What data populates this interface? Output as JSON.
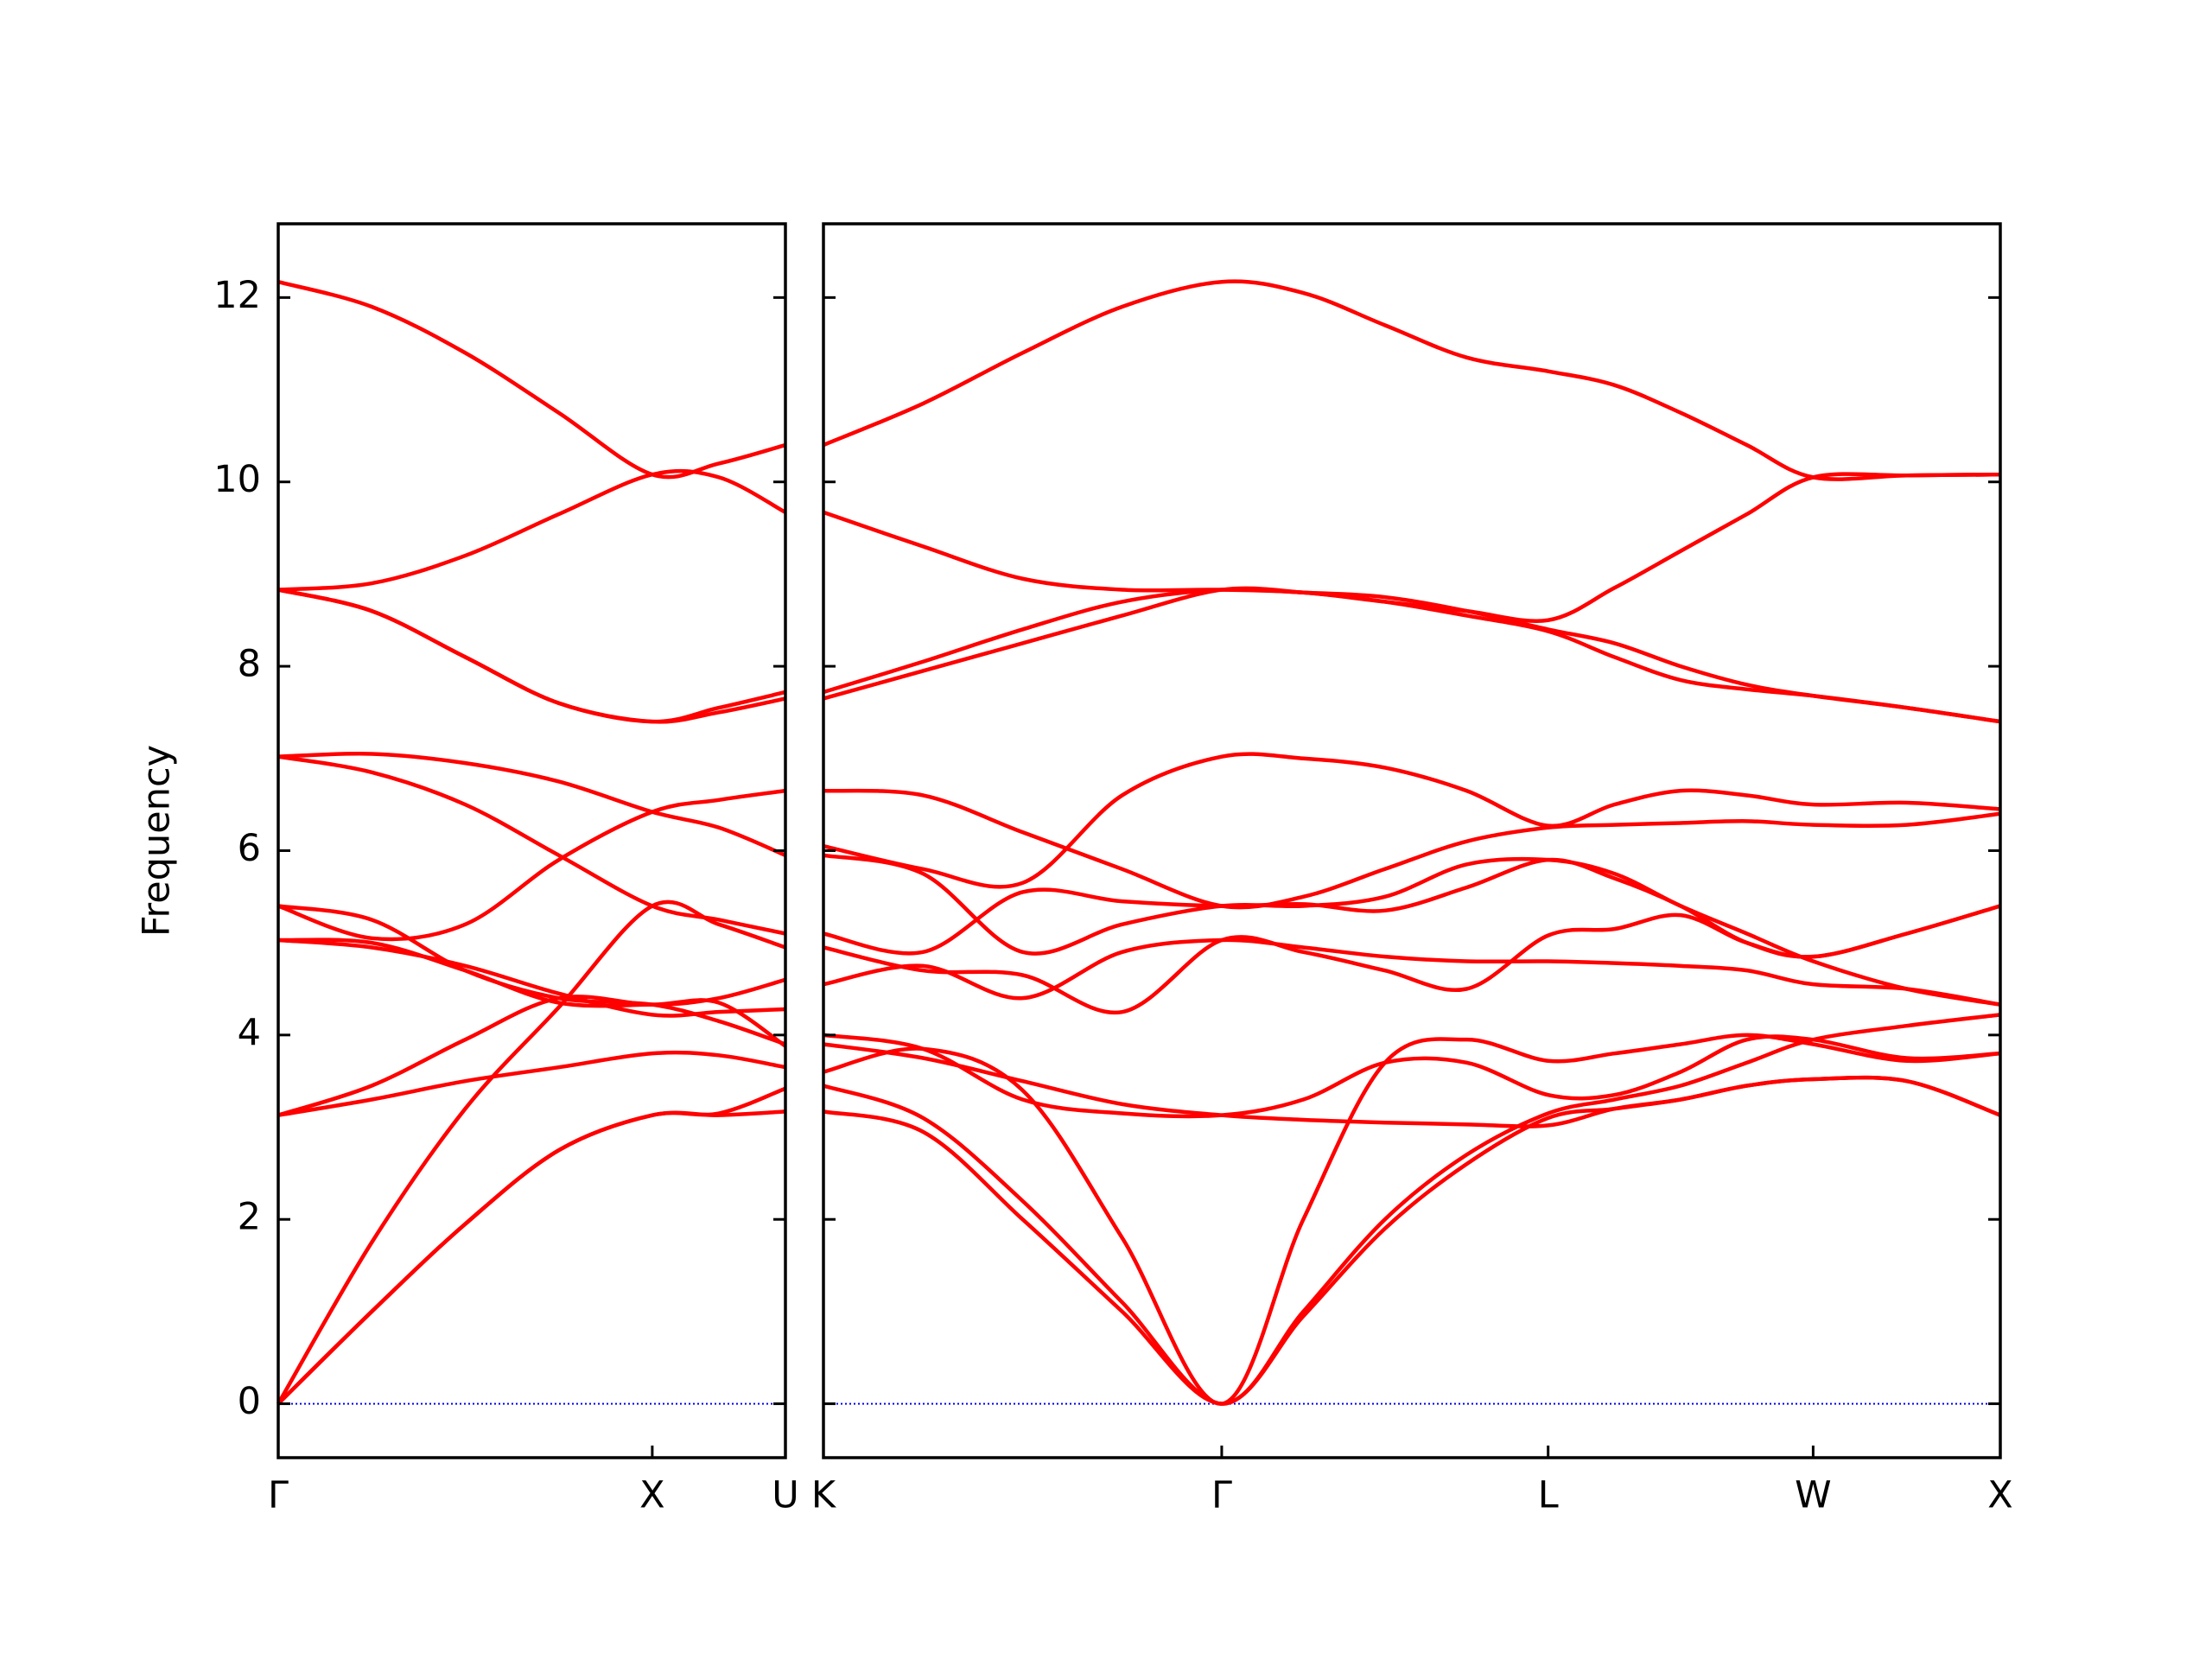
{
  "chart_data": [
    {
      "type": "line",
      "ylabel": "Frequency",
      "x": [
        0,
        0.25,
        0.5,
        0.75,
        1,
        1.178,
        1.356
      ],
      "xlim": [
        0,
        1.356
      ],
      "xticks": [
        {
          "value": 0,
          "label": "Γ"
        },
        {
          "value": 1,
          "label": "X"
        },
        {
          "value": 1.356,
          "label": "U"
        }
      ],
      "ylim": [
        -0.585,
        12.8
      ],
      "yticks": [
        0,
        2,
        4,
        6,
        8,
        10,
        12
      ],
      "hlines": [
        {
          "value": 0,
          "color": "#0000ff"
        }
      ],
      "series": [
        {
          "color": "#ff0000",
          "values": [
            0,
            1.0,
            1.95,
            2.75,
            3.13,
            3.13,
            3.17
          ]
        },
        {
          "color": "#ff0000",
          "values": [
            0,
            1.0,
            1.95,
            2.75,
            3.13,
            3.15,
            3.42
          ]
        },
        {
          "color": "#ff0000",
          "values": [
            0,
            1.75,
            3.2,
            4.3,
            5.4,
            5.2,
            4.95
          ]
        },
        {
          "color": "#ff0000",
          "values": [
            3.13,
            3.3,
            3.5,
            3.65,
            3.8,
            3.78,
            3.65
          ]
        },
        {
          "color": "#ff0000",
          "values": [
            3.13,
            3.45,
            3.95,
            4.4,
            4.33,
            4.4,
            4.6
          ]
        },
        {
          "color": "#ff0000",
          "values": [
            5.03,
            4.95,
            4.75,
            4.45,
            4.22,
            4.25,
            4.28
          ]
        },
        {
          "color": "#ff0000",
          "values": [
            5.03,
            5.0,
            4.7,
            4.35,
            4.33,
            4.35,
            3.88
          ]
        },
        {
          "color": "#ff0000",
          "values": [
            5.4,
            5.05,
            5.2,
            5.9,
            6.42,
            6.55,
            6.65
          ]
        },
        {
          "color": "#ff0000",
          "values": [
            5.4,
            5.25,
            4.7,
            4.4,
            4.33,
            4.15,
            3.9
          ]
        },
        {
          "color": "#ff0000",
          "values": [
            7.02,
            6.85,
            6.5,
            5.95,
            5.4,
            5.25,
            5.1
          ]
        },
        {
          "color": "#ff0000",
          "values": [
            7.02,
            7.05,
            6.95,
            6.75,
            6.42,
            6.25,
            5.95
          ]
        },
        {
          "color": "#ff0000",
          "values": [
            8.83,
            8.6,
            8.1,
            7.6,
            7.4,
            7.5,
            7.65
          ]
        },
        {
          "color": "#ff0000",
          "values": [
            8.83,
            8.6,
            8.1,
            7.6,
            7.4,
            7.55,
            7.72
          ]
        },
        {
          "color": "#ff0000",
          "values": [
            8.83,
            8.9,
            9.2,
            9.65,
            10.08,
            10.05,
            9.67
          ]
        },
        {
          "color": "#ff0000",
          "values": [
            12.17,
            11.9,
            11.4,
            10.75,
            10.08,
            10.2,
            10.4
          ]
        }
      ]
    },
    {
      "type": "line",
      "show_ytick_labels": false,
      "x": [
        0,
        0.266,
        0.532,
        0.798,
        1.064,
        1.282,
        1.5,
        1.718,
        1.936,
        2.113,
        2.29,
        2.467,
        2.644,
        2.894,
        3.144
      ],
      "xlim": [
        0,
        3.144
      ],
      "xticks": [
        {
          "value": 0,
          "label": "K"
        },
        {
          "value": 1.064,
          "label": "Γ"
        },
        {
          "value": 1.936,
          "label": "L"
        },
        {
          "value": 2.644,
          "label": "W"
        },
        {
          "value": 3.144,
          "label": "X"
        }
      ],
      "ylim": [
        -0.585,
        12.8
      ],
      "yticks": [
        0,
        2,
        4,
        6,
        8,
        10,
        12
      ],
      "hlines": [
        {
          "value": 0,
          "color": "#0000ff"
        }
      ],
      "series": [
        {
          "color": "#ff0000",
          "values": [
            3.17,
            2.95,
            2.0,
            1.0,
            0,
            0.95,
            1.9,
            2.6,
            3.1,
            3.2,
            3.3,
            3.45,
            3.52,
            3.5,
            3.13
          ]
        },
        {
          "color": "#ff0000",
          "values": [
            3.45,
            3.1,
            2.2,
            1.1,
            0,
            1.0,
            2.0,
            2.7,
            3.15,
            3.3,
            3.45,
            3.7,
            3.95,
            4.1,
            4.22
          ]
        },
        {
          "color": "#ff0000",
          "values": [
            3.6,
            3.85,
            3.4,
            1.8,
            0,
            2.0,
            3.7,
            3.95,
            3.72,
            3.8,
            3.9,
            4.0,
            3.9,
            3.72,
            3.8
          ]
        },
        {
          "color": "#ff0000",
          "values": [
            3.9,
            3.75,
            3.5,
            3.25,
            3.13,
            3.08,
            3.05,
            3.03,
            3.02,
            3.2,
            3.3,
            3.45,
            3.52,
            3.5,
            3.13
          ]
        },
        {
          "color": "#ff0000",
          "values": [
            4.0,
            3.85,
            3.3,
            3.15,
            3.13,
            3.3,
            3.7,
            3.7,
            3.35,
            3.35,
            3.6,
            3.95,
            3.95,
            3.75,
            3.8
          ]
        },
        {
          "color": "#ff0000",
          "values": [
            4.55,
            4.75,
            4.4,
            4.9,
            5.03,
            4.95,
            4.85,
            4.8,
            4.8,
            4.78,
            4.75,
            4.7,
            4.55,
            4.5,
            4.33
          ]
        },
        {
          "color": "#ff0000",
          "values": [
            4.95,
            4.7,
            4.65,
            4.25,
            5.03,
            4.9,
            4.7,
            4.5,
            5.08,
            5.15,
            5.3,
            5.0,
            4.85,
            5.1,
            5.4
          ]
        },
        {
          "color": "#ff0000",
          "values": [
            5.1,
            4.9,
            5.55,
            5.45,
            5.4,
            5.42,
            5.35,
            5.6,
            5.9,
            5.7,
            5.4,
            5.0,
            4.85,
            5.1,
            5.4
          ]
        },
        {
          "color": "#ff0000",
          "values": [
            5.95,
            5.75,
            4.9,
            5.2,
            5.4,
            5.4,
            5.5,
            5.85,
            5.9,
            5.75,
            5.4,
            5.1,
            4.8,
            4.5,
            4.33
          ]
        },
        {
          "color": "#ff0000",
          "values": [
            6.05,
            5.8,
            5.65,
            6.6,
            7.02,
            7.0,
            6.9,
            6.65,
            6.27,
            6.5,
            6.65,
            6.6,
            6.5,
            6.52,
            6.45
          ]
        },
        {
          "color": "#ff0000",
          "values": [
            6.65,
            6.6,
            6.2,
            5.8,
            5.4,
            5.5,
            5.8,
            6.1,
            6.25,
            6.28,
            6.3,
            6.32,
            6.28,
            6.28,
            6.4
          ]
        },
        {
          "color": "#ff0000",
          "values": [
            7.65,
            7.95,
            8.25,
            8.55,
            8.83,
            8.8,
            8.7,
            8.55,
            8.38,
            8.1,
            7.85,
            7.75,
            7.68,
            7.55,
            7.4
          ]
        },
        {
          "color": "#ff0000",
          "values": [
            7.72,
            8.05,
            8.4,
            8.7,
            8.83,
            8.8,
            8.75,
            8.6,
            8.4,
            8.25,
            8.0,
            7.8,
            7.68,
            7.55,
            7.4
          ]
        },
        {
          "color": "#ff0000",
          "values": [
            9.67,
            9.3,
            8.95,
            8.83,
            8.83,
            8.8,
            8.7,
            8.6,
            8.5,
            8.85,
            9.25,
            9.65,
            10.05,
            10.07,
            10.08
          ]
        },
        {
          "color": "#ff0000",
          "values": [
            10.4,
            10.85,
            11.4,
            11.9,
            12.17,
            12.05,
            11.7,
            11.35,
            11.2,
            11.05,
            10.75,
            10.4,
            10.05,
            10.07,
            10.08
          ]
        }
      ]
    }
  ]
}
